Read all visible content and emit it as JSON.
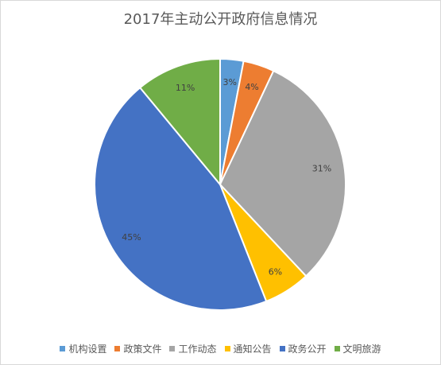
{
  "chart_data": {
    "type": "pie",
    "title": "2017年主动公开政府信息情况",
    "legend_position": "bottom",
    "slices": [
      {
        "name": "机构设置",
        "value": 3,
        "label": "3%",
        "color": "#5b9bd5"
      },
      {
        "name": "政策文件",
        "value": 4,
        "label": "4%",
        "color": "#ed7d31"
      },
      {
        "name": "工作动态",
        "value": 31,
        "label": "31%",
        "color": "#a5a5a5"
      },
      {
        "name": "通知公告",
        "value": 6,
        "label": "6%",
        "color": "#ffc000"
      },
      {
        "name": "政务公开",
        "value": 45,
        "label": "45%",
        "color": "#4472c4"
      },
      {
        "name": "文明旅游",
        "value": 11,
        "label": "11%",
        "color": "#70ad47"
      }
    ]
  }
}
